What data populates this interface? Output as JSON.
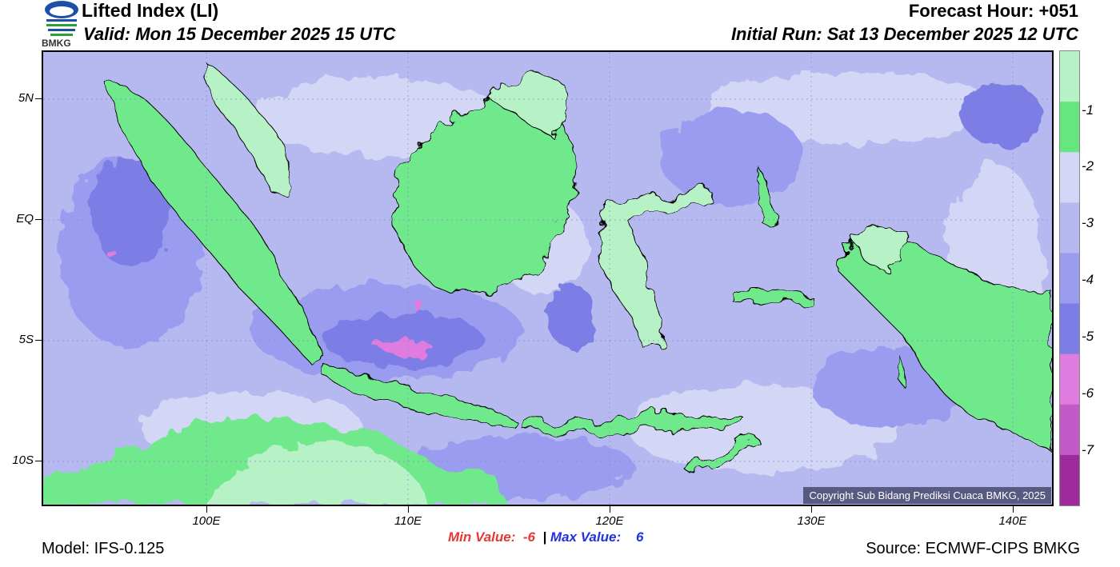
{
  "header": {
    "title": "Lifted Index (LI)",
    "valid": "Valid: Mon 15 December 2025 15 UTC",
    "forecast_hour": "Forecast Hour: +051",
    "initial_run": "Initial Run: Sat 13 December 2025 12 UTC",
    "logo_text": "BMKG"
  },
  "map": {
    "lat_labels": [
      "5N",
      "EQ",
      "5S",
      "10S"
    ],
    "lon_labels": [
      "100E",
      "110E",
      "120E",
      "130E",
      "140E"
    ],
    "copyright": "Copyright Sub Bidang Prediksi Cuaca BMKG, 2025",
    "colors": {
      "ocean_base": "#b6b8f0",
      "light_band": "#d4d6f6",
      "mid_band": "#9a9cf0",
      "dark_band": "#7c7ee6",
      "land_light": "#b6f2c6",
      "land_green": "#6fe88c",
      "pink": "#e07ce0"
    }
  },
  "legend": {
    "colors": [
      "#b6f2c6",
      "#66e67e",
      "#d4d6f6",
      "#b6b8f0",
      "#9a9cf0",
      "#7c7ee6",
      "#e07ce0",
      "#c459c8",
      "#9c2a9a"
    ],
    "labels": [
      "-1",
      "-2",
      "-3",
      "-4",
      "-5",
      "-6",
      "-7"
    ]
  },
  "footer": {
    "min_label": "Min Value:",
    "min_value": "-6",
    "separator": "|",
    "max_label": "Max Value:",
    "max_value": "6",
    "model": "Model: IFS-0.125",
    "source": "Source: ECMWF-CIPS BMKG"
  }
}
